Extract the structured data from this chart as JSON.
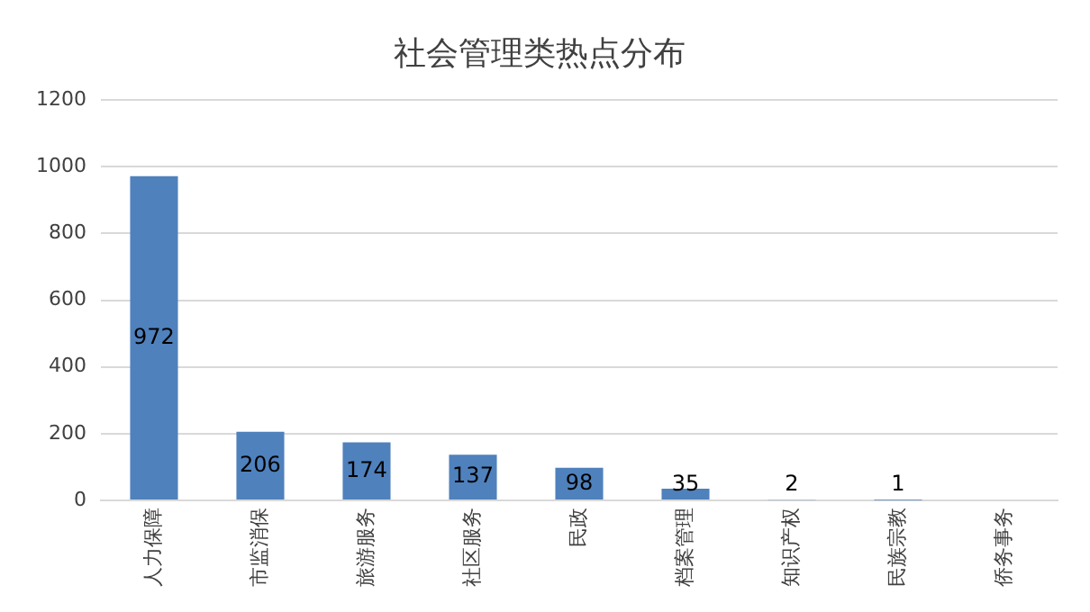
{
  "chart_data": {
    "type": "bar",
    "title": "社会管理类热点分布",
    "categories": [
      "人力保障",
      "市监消保",
      "旅游服务",
      "社区服务",
      "民政",
      "档案管理",
      "知识产权",
      "民族宗教",
      "侨务事务"
    ],
    "values": [
      972,
      206,
      174,
      137,
      98,
      35,
      2,
      1,
      0
    ],
    "value_labels": [
      "972",
      "206",
      "174",
      "137",
      "98",
      "35",
      "2",
      "1",
      null
    ],
    "color": "#4f81bd",
    "ylim": [
      0,
      1200
    ],
    "yticks": [
      0,
      200,
      400,
      600,
      800,
      1000,
      1200
    ],
    "grid": "y",
    "legend": false
  }
}
